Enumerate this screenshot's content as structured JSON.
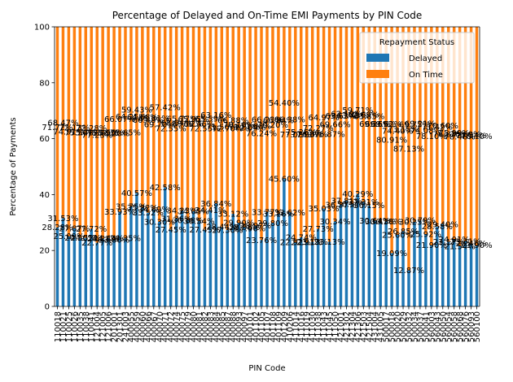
{
  "chart_data": {
    "type": "bar",
    "stacked": true,
    "title": "Percentage of Delayed and On-Time EMI Payments by PIN Code",
    "xlabel": "PIN Code",
    "ylabel": "Percentage of Payments",
    "ylim": [
      0,
      100
    ],
    "yticks": [
      0,
      20,
      40,
      60,
      80,
      100
    ],
    "legend": {
      "title": "Repayment Status",
      "placement": "top-right"
    },
    "categories": [
      "110018",
      "110021",
      "110025",
      "110026",
      "110035",
      "110038",
      "110041",
      "121004",
      "121005",
      "121006",
      "201001",
      "201301",
      "241003",
      "400055",
      "400059",
      "400060",
      "400066",
      "400067",
      "400070",
      "400071",
      "400072",
      "400074",
      "400075",
      "400079",
      "400080",
      "400081",
      "400082",
      "400083",
      "400084",
      "400085",
      "400087",
      "400088",
      "400093",
      "400097",
      "400101",
      "401102",
      "401105",
      "401107",
      "401108",
      "401109",
      "401209",
      "410206",
      "411014",
      "411016",
      "411019",
      "411030",
      "411038",
      "411043",
      "411045",
      "411050",
      "421001",
      "421302",
      "421304",
      "421306",
      "421503",
      "421504",
      "431004",
      "431005",
      "500017",
      "500018",
      "500020",
      "500029",
      "500032",
      "500034",
      "500037",
      "500041",
      "560003",
      "560043",
      "560050",
      "560054",
      "560058",
      "560068",
      "560076",
      "560093",
      "560100"
    ],
    "series": [
      {
        "name": "Delayed",
        "color": "#1f77b4",
        "values": [
          28.28,
          31.53,
          25.09,
          27.87,
          24.5,
          24.52,
          27.72,
          22.77,
          24.21,
          24.44,
          23.8,
          33.93,
          24.35,
          35.75,
          40.57,
          35.32,
          33.52,
          34.69,
          30.3,
          42.58,
          27.45,
          31.36,
          34.23,
          30.88,
          34.05,
          30.54,
          27.45,
          34.41,
          36.84,
          28.44,
          27.3,
          33.12,
          29.9,
          28.38,
          27.96,
          28.97,
          23.76,
          33.77,
          29.8,
          33.16,
          45.6,
          33.62,
          22.92,
          24.74,
          22.91,
          23.13,
          27.73,
          35.03,
          23.13,
          30.34,
          36.37,
          37.81,
          36.57,
          40.29,
          37.31,
          36.15,
          30.64,
          30.41,
          30.38,
          19.09,
          25.6,
          26.85,
          12.87,
          30.25,
          30.79,
          25.92,
          21.9,
          28.58,
          29.4,
          23.17,
          24.01,
          21.54,
          23.31,
          22.46,
          21.9
        ]
      },
      {
        "name": "On Time",
        "color": "#ff7f0e",
        "values": [
          71.72,
          68.47,
          74.91,
          72.13,
          75.5,
          75.48,
          72.28,
          77.23,
          75.79,
          75.56,
          76.2,
          66.07,
          75.65,
          64.25,
          59.43,
          64.68,
          66.48,
          65.31,
          69.7,
          57.42,
          72.55,
          68.64,
          65.77,
          69.12,
          65.95,
          69.46,
          72.55,
          65.59,
          63.16,
          71.56,
          72.7,
          66.88,
          70.1,
          71.62,
          72.04,
          71.03,
          76.24,
          66.23,
          70.2,
          66.84,
          54.4,
          66.38,
          77.08,
          75.26,
          77.09,
          76.87,
          72.27,
          64.97,
          76.87,
          69.66,
          63.63,
          62.19,
          63.43,
          59.71,
          62.69,
          63.85,
          69.36,
          69.59,
          69.62,
          80.91,
          74.4,
          73.15,
          87.13,
          69.75,
          69.21,
          74.08,
          78.1,
          71.42,
          70.6,
          76.83,
          75.99,
          78.46,
          76.69,
          77.54,
          78.1
        ]
      }
    ],
    "data_labels": {
      "delayed": [
        "28.28%",
        "31.53%",
        "25.09%",
        "27.87%",
        "24.50%",
        "24.52%",
        "27.72%",
        "22.77%",
        "24.21%",
        "24.44%",
        "23.80%",
        "33.93%",
        "24.35%",
        "35.75%",
        "40.57%",
        "35.32%",
        "33.52%",
        "34.69%",
        "30.30%",
        "42.58%",
        "27.45%",
        "31.36%",
        "34.23%",
        "30.88%",
        "34.05%",
        "30.54%",
        "27.45%",
        "34.41%",
        "36.84%",
        "28.44%",
        "27.30%",
        "33.12%",
        "29.90%",
        "28.38%",
        "27.96%",
        "28.97%",
        "23.76%",
        "33.77%",
        "29.80%",
        "33.16%",
        "45.60%",
        "33.62%",
        "22.92%",
        "24.74%",
        "22.91%",
        "23.13%",
        "27.73%",
        "35.03%",
        "23.13%",
        "30.34%",
        "36.37%",
        "37.81%",
        "36.57%",
        "40.29%",
        "37.31%",
        "36.15%",
        "30.64%",
        "30.41%",
        "30.38%",
        "19.09%",
        "25.60%",
        "26.85%",
        "12.87%",
        "30.25%",
        "30.79%",
        "25.92%",
        "21.90%",
        "28.58%",
        "29.40%",
        "23.17%",
        "24.01%",
        "21.54%",
        "23.31%",
        "22.46%",
        "21.90%"
      ],
      "on_time": [
        "71.72%",
        "68.47%",
        "74.91%",
        "72.13%",
        "75.50%",
        "75.48%",
        "72.28%",
        "77.23%",
        "75.79%",
        "75.56%",
        "76.20%",
        "66.07%",
        "75.65%",
        "64.25%",
        "59.43%",
        "64.68%",
        "66.48%",
        "65.31%",
        "69.70%",
        "57.42%",
        "72.55%",
        "68.64%",
        "65.77%",
        "69.12%",
        "65.95%",
        "69.46%",
        "72.55%",
        "65.59%",
        "63.16%",
        "71.56%",
        "72.70%",
        "66.88%",
        "70.10%",
        "71.62%",
        "72.04%",
        "71.03%",
        "76.24%",
        "66.23%",
        "70.20%",
        "66.84%",
        "54.40%",
        "66.38%",
        "77.08%",
        "75.26%",
        "77.09%",
        "76.87%",
        "72.27%",
        "64.97%",
        "76.87%",
        "69.66%",
        "63.63%",
        "62.19%",
        "63.43%",
        "59.71%",
        "62.69%",
        "63.85%",
        "69.36%",
        "69.59%",
        "69.62%",
        "80.91%",
        "74.40%",
        "73.15%",
        "87.13%",
        "69.75%",
        "69.21%",
        "74.08%",
        "78.10%",
        "71.42%",
        "70.60%",
        "76.83%",
        "75.99%",
        "78.46%",
        "76.69%",
        "77.54%",
        "78.10%"
      ]
    }
  }
}
